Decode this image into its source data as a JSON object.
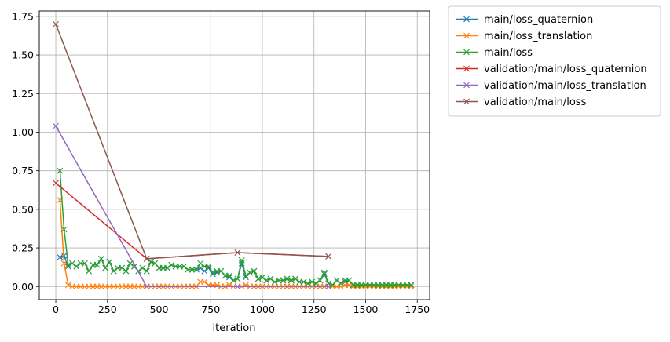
{
  "chart_data": {
    "type": "line",
    "title": "",
    "xlabel": "iteration",
    "ylabel": "",
    "xlim": [
      -80,
      1810
    ],
    "ylim": [
      -0.085,
      1.785
    ],
    "xticks": [
      0,
      250,
      500,
      750,
      1000,
      1250,
      1500,
      1750
    ],
    "yticks": [
      0.0,
      0.25,
      0.5,
      0.75,
      1.0,
      1.25,
      1.5,
      1.75
    ],
    "grid": true,
    "legend_position": "outside-top-right",
    "marker": "x",
    "series": [
      {
        "name": "main/loss_quaternion",
        "color": "#1f77b4",
        "x": [
          20,
          40,
          60,
          80,
          100,
          120,
          140,
          160,
          180,
          200,
          220,
          240,
          260,
          280,
          300,
          320,
          340,
          360,
          380,
          400,
          420,
          440,
          460,
          480,
          500,
          520,
          540,
          560,
          580,
          600,
          620,
          640,
          660,
          680,
          700,
          720,
          740,
          760,
          780,
          800,
          820,
          840,
          860,
          880,
          900,
          920,
          940,
          960,
          980,
          1000,
          1020,
          1040,
          1060,
          1080,
          1100,
          1120,
          1140,
          1160,
          1180,
          1200,
          1220,
          1240,
          1260,
          1280,
          1300,
          1320,
          1340,
          1360,
          1380,
          1400,
          1420,
          1440,
          1460,
          1480,
          1500,
          1520,
          1540,
          1560,
          1580,
          1600,
          1620,
          1640,
          1660,
          1680,
          1700,
          1720
        ],
        "y": [
          0.19,
          0.2,
          0.13,
          0.15,
          0.13,
          0.15,
          0.15,
          0.1,
          0.14,
          0.14,
          0.18,
          0.12,
          0.16,
          0.1,
          0.12,
          0.12,
          0.1,
          0.15,
          0.13,
          0.1,
          0.12,
          0.1,
          0.16,
          0.15,
          0.12,
          0.12,
          0.12,
          0.14,
          0.13,
          0.13,
          0.13,
          0.11,
          0.11,
          0.11,
          0.12,
          0.1,
          0.12,
          0.08,
          0.09,
          0.1,
          0.07,
          0.06,
          0.04,
          0.05,
          0.15,
          0.06,
          0.09,
          0.1,
          0.05,
          0.06,
          0.04,
          0.05,
          0.03,
          0.04,
          0.04,
          0.05,
          0.04,
          0.05,
          0.03,
          0.03,
          0.02,
          0.03,
          0.02,
          0.04,
          0.08,
          0.02,
          0.01,
          0.04,
          0.02,
          0.03,
          0.04,
          0.01,
          0.01,
          0.01,
          0.01,
          0.01,
          0.01,
          0.01,
          0.01,
          0.01,
          0.01,
          0.01,
          0.01,
          0.01,
          0.01,
          0.01
        ]
      },
      {
        "name": "main/loss_translation",
        "color": "#ff7f0e",
        "x": [
          20,
          40,
          60,
          80,
          100,
          120,
          140,
          160,
          180,
          200,
          220,
          240,
          260,
          280,
          300,
          320,
          340,
          360,
          380,
          400,
          420,
          440,
          460,
          480,
          500,
          520,
          540,
          560,
          580,
          600,
          620,
          640,
          660,
          680,
          700,
          720,
          740,
          760,
          780,
          800,
          820,
          840,
          860,
          880,
          900,
          920,
          940,
          960,
          980,
          1000,
          1020,
          1040,
          1060,
          1080,
          1100,
          1120,
          1140,
          1160,
          1180,
          1200,
          1220,
          1240,
          1260,
          1280,
          1300,
          1320,
          1340,
          1360,
          1380,
          1400,
          1420,
          1440,
          1460,
          1480,
          1500,
          1520,
          1540,
          1560,
          1580,
          1600,
          1620,
          1640,
          1660,
          1680,
          1700,
          1720
        ],
        "y": [
          0.56,
          0.15,
          0.01,
          0.0,
          0.0,
          0.0,
          0.0,
          0.0,
          0.0,
          0.0,
          0.0,
          0.0,
          0.0,
          0.0,
          0.0,
          0.0,
          0.0,
          0.0,
          0.0,
          0.0,
          0.0,
          0.0,
          0.0,
          0.0,
          0.0,
          0.0,
          0.0,
          0.0,
          0.0,
          0.0,
          0.0,
          0.0,
          0.0,
          0.0,
          0.03,
          0.03,
          0.01,
          0.01,
          0.01,
          0.0,
          0.0,
          0.01,
          0.0,
          0.0,
          0.0,
          0.01,
          0.0,
          0.0,
          0.0,
          0.0,
          0.0,
          0.0,
          0.0,
          0.0,
          0.0,
          0.0,
          0.0,
          0.0,
          0.0,
          0.0,
          0.0,
          0.0,
          0.0,
          0.0,
          0.0,
          0.0,
          0.0,
          0.0,
          0.0,
          0.01,
          0.01,
          0.0,
          0.0,
          0.0,
          0.0,
          0.0,
          0.0,
          0.0,
          0.0,
          0.0,
          0.0,
          0.0,
          0.0,
          0.0,
          0.0,
          0.0
        ]
      },
      {
        "name": "main/loss",
        "color": "#2ca02c",
        "x": [
          20,
          40,
          60,
          80,
          100,
          120,
          140,
          160,
          180,
          200,
          220,
          240,
          260,
          280,
          300,
          320,
          340,
          360,
          380,
          400,
          420,
          440,
          460,
          480,
          500,
          520,
          540,
          560,
          580,
          600,
          620,
          640,
          660,
          680,
          700,
          720,
          740,
          760,
          780,
          800,
          820,
          840,
          860,
          880,
          900,
          920,
          940,
          960,
          980,
          1000,
          1020,
          1040,
          1060,
          1080,
          1100,
          1120,
          1140,
          1160,
          1180,
          1200,
          1220,
          1240,
          1260,
          1280,
          1300,
          1320,
          1340,
          1360,
          1380,
          1400,
          1420,
          1440,
          1460,
          1480,
          1500,
          1520,
          1540,
          1560,
          1580,
          1600,
          1620,
          1640,
          1660,
          1680,
          1700,
          1720
        ],
        "y": [
          0.75,
          0.37,
          0.14,
          0.15,
          0.13,
          0.15,
          0.15,
          0.1,
          0.14,
          0.14,
          0.18,
          0.12,
          0.16,
          0.1,
          0.12,
          0.12,
          0.1,
          0.15,
          0.13,
          0.1,
          0.12,
          0.1,
          0.16,
          0.15,
          0.12,
          0.12,
          0.12,
          0.14,
          0.13,
          0.13,
          0.13,
          0.11,
          0.11,
          0.11,
          0.15,
          0.13,
          0.13,
          0.09,
          0.1,
          0.1,
          0.07,
          0.07,
          0.04,
          0.05,
          0.17,
          0.07,
          0.09,
          0.1,
          0.05,
          0.06,
          0.04,
          0.05,
          0.03,
          0.04,
          0.04,
          0.05,
          0.04,
          0.05,
          0.03,
          0.03,
          0.02,
          0.03,
          0.02,
          0.04,
          0.09,
          0.02,
          0.01,
          0.04,
          0.02,
          0.04,
          0.04,
          0.01,
          0.01,
          0.01,
          0.01,
          0.01,
          0.01,
          0.01,
          0.01,
          0.01,
          0.01,
          0.01,
          0.01,
          0.01,
          0.01,
          0.01
        ]
      },
      {
        "name": "validation/main/loss_quaternion",
        "color": "#d62728",
        "x": [
          0,
          440,
          880,
          1320
        ],
        "y": [
          0.67,
          0.18,
          0.22,
          0.195
        ]
      },
      {
        "name": "validation/main/loss_translation",
        "color": "#9467bd",
        "x": [
          0,
          440,
          880,
          1320
        ],
        "y": [
          1.04,
          0.0,
          0.0,
          0.0
        ]
      },
      {
        "name": "validation/main/loss",
        "color": "#8c564b",
        "x": [
          0,
          440,
          880,
          1320
        ],
        "y": [
          1.7,
          0.18,
          0.22,
          0.195
        ]
      }
    ]
  }
}
